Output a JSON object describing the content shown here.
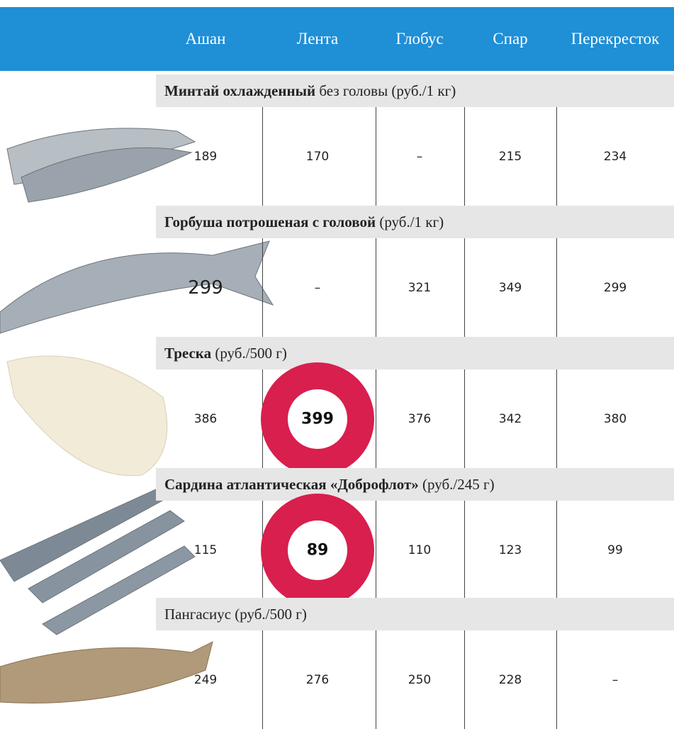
{
  "header": {
    "columns": [
      "Ашан",
      "Лента",
      "Глобус",
      "Спар",
      "Перекресток"
    ]
  },
  "rows": [
    {
      "label_bold": "Минтай охлажденный",
      "label": "без головы (руб./1 кг)",
      "values": [
        189,
        170,
        "–",
        215,
        234
      ]
    },
    {
      "label_bold": "Горбуша потрошеная с головой",
      "label": "(руб./1 кг)",
      "values": [
        299,
        "–",
        321,
        349,
        299
      ]
    },
    {
      "label_bold": "Треска",
      "label": "(руб./500 г)",
      "values": [
        386,
        399,
        376,
        342,
        380
      ]
    },
    {
      "label_bold": "Сардина атлантическая «Доброфлот»",
      "label": "(руб./245 г)",
      "values": [
        115,
        89,
        110,
        123,
        99
      ]
    },
    {
      "label": "Пангасиус (руб./500 г)",
      "values": [
        249,
        276,
        250,
        228,
        "–"
      ]
    }
  ]
}
